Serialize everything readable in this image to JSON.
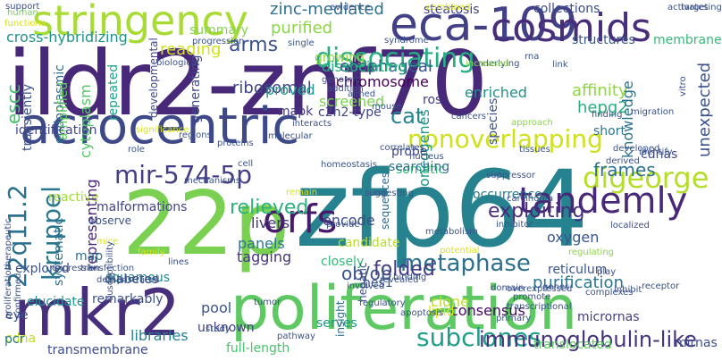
{
  "words": [
    {
      "text": "ildr2-znf70",
      "color": "#482979"
    },
    {
      "text": "zfp64",
      "color": "#26828e"
    },
    {
      "text": "poliferation",
      "color": "#5ec962"
    },
    {
      "text": "22p",
      "color": "#7ad151"
    },
    {
      "text": "mkr2",
      "color": "#472f7d"
    },
    {
      "text": "acrocentric",
      "color": "#3e4989"
    },
    {
      "text": "eca-109",
      "color": "#424086"
    },
    {
      "text": "stringency",
      "color": "#a8db34"
    },
    {
      "text": "cosmids",
      "color": "#472d7b"
    },
    {
      "text": "tandemly",
      "color": "#482878"
    },
    {
      "text": "nonoverlapping",
      "color": "#d0e11c"
    },
    {
      "text": "orfs",
      "color": "#481a6c"
    },
    {
      "text": "digeorge",
      "color": "#b5de2b"
    },
    {
      "text": "dissociating",
      "color": "#26ad81"
    },
    {
      "text": "metaphase",
      "color": "#2d708e"
    },
    {
      "text": "subclones",
      "color": "#1f9e89"
    },
    {
      "text": "immunoglobulin-like",
      "color": "#46337e"
    },
    {
      "text": "mir-574-5p",
      "color": "#433e85"
    },
    {
      "text": "kruppel",
      "color": "#2a788e"
    },
    {
      "text": "22q11.2",
      "color": "#2c728e"
    },
    {
      "text": "exploiting",
      "color": "#472c7a"
    },
    {
      "text": "frames",
      "color": "#2d708e"
    },
    {
      "text": "relieved",
      "color": "#2db27d"
    },
    {
      "text": "folded",
      "color": "#443a83"
    },
    {
      "text": "arms",
      "color": "#3b528b"
    },
    {
      "text": "cat",
      "color": "#25858e"
    },
    {
      "text": "ob/ob",
      "color": "#3b528b"
    },
    {
      "text": "zinc-mediated",
      "color": "#2d708e"
    },
    {
      "text": "purified",
      "color": "#8bd646"
    },
    {
      "text": "cross-hybridizing",
      "color": "#21918c"
    },
    {
      "text": "steatosis",
      "color": "#414487"
    },
    {
      "text": "collections",
      "color": "#3d4e8a"
    },
    {
      "text": "membrane",
      "color": "#37b878"
    },
    {
      "text": "structures",
      "color": "#39568c"
    },
    {
      "text": "growing",
      "color": "#90d743"
    },
    {
      "text": "summary",
      "color": "#84d44b"
    },
    {
      "text": "reading",
      "color": "#d2e21b"
    },
    {
      "text": "ribosomal",
      "color": "#3f4788"
    },
    {
      "text": "esophageal",
      "color": "#3b528b"
    },
    {
      "text": "chromosome",
      "color": "#440154"
    },
    {
      "text": "screened",
      "color": "#7ad151"
    },
    {
      "text": "dissociating",
      "color": "#26ad81"
    },
    {
      "text": "escc",
      "color": "#46c06f"
    },
    {
      "text": "endoplasmic",
      "color": "#2f6c8e"
    },
    {
      "text": "cytoplasm",
      "color": "#56c667"
    },
    {
      "text": "amplified",
      "color": "#65cb5e"
    },
    {
      "text": "transiently",
      "color": "#3b528b"
    },
    {
      "text": "repeated",
      "color": "#21a685"
    },
    {
      "text": "developmental",
      "color": "#3e4989"
    },
    {
      "text": "generating",
      "color": "#3e4989"
    },
    {
      "text": "proved",
      "color": "#1f988b"
    },
    {
      "text": "mapk",
      "color": "#443983"
    },
    {
      "text": "ros",
      "color": "#433d84"
    },
    {
      "text": "c2h2-type",
      "color": "#3f4788"
    },
    {
      "text": "oncogenes",
      "color": "#1f9a8a"
    },
    {
      "text": "enriched",
      "color": "#218f8d"
    },
    {
      "text": "species",
      "color": "#3b528b"
    },
    {
      "text": "affinity",
      "color": "#90d743"
    },
    {
      "text": "hepg2",
      "color": "#29af7f"
    },
    {
      "text": "short",
      "color": "#2a788e"
    },
    {
      "text": "knowledge",
      "color": "#2c728e"
    },
    {
      "text": "unexpected",
      "color": "#3b528b"
    },
    {
      "text": "identification",
      "color": "#414487"
    },
    {
      "text": "probe",
      "color": "#404588"
    },
    {
      "text": "somatic",
      "color": "#35b779"
    },
    {
      "text": "searching",
      "color": "#2e6e8e"
    },
    {
      "text": "occurrence",
      "color": "#287c8e"
    },
    {
      "text": "cdnas",
      "color": "#3e4a89"
    },
    {
      "text": "reactive",
      "color": "#a2da37"
    },
    {
      "text": "representing",
      "color": "#482576"
    },
    {
      "text": "malformations",
      "color": "#414487"
    },
    {
      "text": "livers",
      "color": "#46327e"
    },
    {
      "text": "encode",
      "color": "#3e4989"
    },
    {
      "text": "panels",
      "color": "#2a768e"
    },
    {
      "text": "tagging",
      "color": "#46337e"
    },
    {
      "text": "candidate",
      "color": "#b8de29"
    },
    {
      "text": "hes1",
      "color": "#3b528b"
    },
    {
      "text": "closely",
      "color": "#35b779"
    },
    {
      "text": "consensus",
      "color": "#46085c"
    },
    {
      "text": "purification",
      "color": "#2b758e"
    },
    {
      "text": "oxygen",
      "color": "#3a548c"
    },
    {
      "text": "reticulum",
      "color": "#3a538b"
    },
    {
      "text": "systematic",
      "color": "#2e6f8e"
    },
    {
      "text": "map",
      "color": "#2c718e"
    },
    {
      "text": "squamous",
      "color": "#25858e"
    },
    {
      "text": "diabetes",
      "color": "#3a548c"
    },
    {
      "text": "remarkably",
      "color": "#3d4e8a"
    },
    {
      "text": "pool",
      "color": "#3b528b"
    },
    {
      "text": "elucidate",
      "color": "#20938c"
    },
    {
      "text": "eye",
      "color": "#3b528b"
    },
    {
      "text": "unknown",
      "color": "#433e85"
    },
    {
      "text": "libraries",
      "color": "#26828e"
    },
    {
      "text": "transmembrane",
      "color": "#3e4c8a"
    },
    {
      "text": "full-length",
      "color": "#4ac16d"
    },
    {
      "text": "serves",
      "color": "#1f988b"
    },
    {
      "text": "insight",
      "color": "#2f6c8e"
    },
    {
      "text": "hepatic",
      "color": "#3b528b"
    },
    {
      "text": "sequences",
      "color": "#2f6b8e"
    },
    {
      "text": "clone",
      "color": "#bddf26"
    },
    {
      "text": "lipid",
      "color": "#d8e219"
    },
    {
      "text": "translocated",
      "color": "#5ec962"
    },
    {
      "text": "mirnas",
      "color": "#3d4d8a"
    },
    {
      "text": "micrornas",
      "color": "#433e85"
    },
    {
      "text": "cdna",
      "color": "#c0df25"
    },
    {
      "text": "pcr",
      "color": "#2a788e"
    },
    {
      "text": "explored",
      "color": "#3b528b"
    },
    {
      "text": "observe",
      "color": "#3b528b"
    },
    {
      "text": "human",
      "color": "#77d153"
    },
    {
      "text": "support",
      "color": "#3b528b"
    },
    {
      "text": "functions",
      "color": "#d8e219"
    },
    {
      "text": "evidence",
      "color": "#3b528b"
    },
    {
      "text": "activates",
      "color": "#3b528b"
    },
    {
      "text": "targeting",
      "color": "#3b528b"
    },
    {
      "text": "combined",
      "color": "#d8e219"
    },
    {
      "text": "syndrome",
      "color": "#3b528b"
    },
    {
      "text": "progression",
      "color": "#3b528b"
    },
    {
      "text": "single",
      "color": "#3b528b"
    },
    {
      "text": "biological",
      "color": "#3b528b"
    },
    {
      "text": "underlying",
      "color": "#3b528b"
    },
    {
      "text": "increased",
      "color": "#8bd646"
    },
    {
      "text": "rna",
      "color": "#3b528b"
    },
    {
      "text": "link",
      "color": "#3b528b"
    },
    {
      "text": "vitro",
      "color": "#3b528b"
    },
    {
      "text": "genomic",
      "color": "#3b528b"
    },
    {
      "text": "addition",
      "color": "#3b528b"
    },
    {
      "text": "aimed",
      "color": "#3b528b"
    },
    {
      "text": "mouse",
      "color": "#3b528b"
    },
    {
      "text": "cancers",
      "color": "#3b528b"
    },
    {
      "text": "finding",
      "color": "#3b528b"
    },
    {
      "text": "approach",
      "color": "#8bd646"
    },
    {
      "text": "migration",
      "color": "#3b528b"
    },
    {
      "text": "interacts",
      "color": "#3b528b"
    },
    {
      "text": "proteins",
      "color": "#3b528b"
    },
    {
      "text": "molecular",
      "color": "#3b528b"
    },
    {
      "text": "regions",
      "color": "#3b528b"
    },
    {
      "text": "significance",
      "color": "#d8e219"
    },
    {
      "text": "therapeutic",
      "color": "#3b528b"
    },
    {
      "text": "proliferation",
      "color": "#3b528b"
    },
    {
      "text": "role",
      "color": "#3b528b"
    },
    {
      "text": "cell",
      "color": "#3b528b"
    },
    {
      "text": "correlates",
      "color": "#3b528b"
    },
    {
      "text": "nucleus",
      "color": "#3b528b"
    },
    {
      "text": "homeostasis",
      "color": "#3b528b"
    },
    {
      "text": "tissues",
      "color": "#3b528b"
    },
    {
      "text": "developed",
      "color": "#3b528b"
    },
    {
      "text": "derived",
      "color": "#3b528b"
    },
    {
      "text": "identify",
      "color": "#3b528b"
    },
    {
      "text": "suppressor",
      "color": "#3b528b"
    },
    {
      "text": "mechanisms",
      "color": "#3b528b"
    },
    {
      "text": "carcinoma",
      "color": "#3b528b"
    },
    {
      "text": "suggesting",
      "color": "#3b528b"
    },
    {
      "text": "inhibitor",
      "color": "#3b528b"
    },
    {
      "text": "remain",
      "color": "#d8e219"
    },
    {
      "text": "provide",
      "color": "#3b528b"
    },
    {
      "text": "metabolism",
      "color": "#3b528b"
    },
    {
      "text": "localized",
      "color": "#3b528b"
    },
    {
      "text": "mice",
      "color": "#d8e219"
    },
    {
      "text": "family",
      "color": "#d8e219"
    },
    {
      "text": "lines",
      "color": "#3b528b"
    },
    {
      "text": "expression",
      "color": "#3b528b"
    },
    {
      "text": "potential",
      "color": "#d8e219"
    },
    {
      "text": "involved",
      "color": "#3b528b"
    },
    {
      "text": "regulating",
      "color": "#8bd646"
    },
    {
      "text": "susceptibility",
      "color": "#3b528b"
    },
    {
      "text": "demonstrated",
      "color": "#3b528b"
    },
    {
      "text": "tumor",
      "color": "#3b528b"
    },
    {
      "text": "binding",
      "color": "#3b528b"
    },
    {
      "text": "genes",
      "color": "#3b528b"
    },
    {
      "text": "complexes",
      "color": "#3b528b"
    },
    {
      "text": "receptor",
      "color": "#3b528b"
    },
    {
      "text": "transfection",
      "color": "#3b528b"
    },
    {
      "text": "pathway",
      "color": "#3b528b"
    },
    {
      "text": "revealed",
      "color": "#3b528b"
    },
    {
      "text": "transcriptional",
      "color": "#3b528b"
    },
    {
      "text": "promote",
      "color": "#3b528b"
    },
    {
      "text": "inhibit",
      "color": "#3b528b"
    },
    {
      "text": "play",
      "color": "#3b528b"
    },
    {
      "text": "study",
      "color": "#3b528b"
    },
    {
      "text": "regulatory",
      "color": "#3b528b"
    },
    {
      "text": "apoptosis",
      "color": "#3b528b"
    },
    {
      "text": "primary",
      "color": "#3b528b"
    },
    {
      "text": "domain",
      "color": "#3b528b"
    },
    {
      "text": "overexpressed",
      "color": "#3b528b"
    },
    {
      "text": "confirmed",
      "color": "#3b528b"
    }
  ]
}
